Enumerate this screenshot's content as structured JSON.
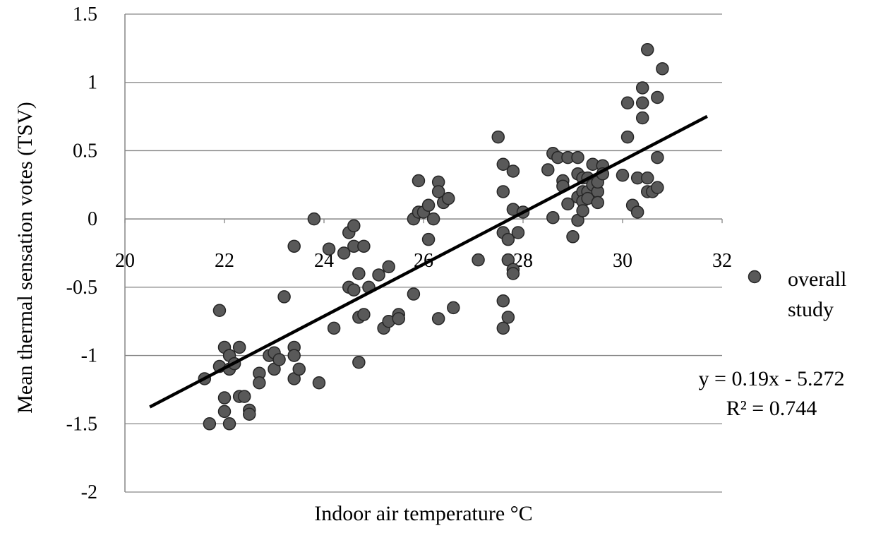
{
  "chart_data": {
    "type": "scatter",
    "title": "",
    "xlabel": "Indoor air temperature °C",
    "ylabel": "Mean thermal sensation votes (TSV)",
    "xlim": [
      20,
      32
    ],
    "ylim": [
      -2,
      1.5
    ],
    "x_ticks": [
      "20",
      "22",
      "24",
      "26",
      "28",
      "30",
      "32"
    ],
    "y_ticks": [
      "1.5",
      "1",
      "0.5",
      "0",
      "-0.5",
      "-1",
      "-1.5",
      "-2"
    ],
    "grid": "horizontal",
    "legend_position": "right",
    "colors": {
      "marker": "#595959",
      "marker_edge": "#262626",
      "trendline": "#000000",
      "grid": "#868686"
    },
    "series": [
      {
        "name": "overall study",
        "points": [
          [
            21.6,
            -1.17
          ],
          [
            21.7,
            -1.5
          ],
          [
            21.9,
            -0.67
          ],
          [
            21.9,
            -1.08
          ],
          [
            22.0,
            -0.94
          ],
          [
            22.0,
            -1.31
          ],
          [
            22.0,
            -1.41
          ],
          [
            22.1,
            -1.0
          ],
          [
            22.1,
            -1.1
          ],
          [
            22.1,
            -1.5
          ],
          [
            22.2,
            -1.06
          ],
          [
            22.3,
            -0.94
          ],
          [
            22.3,
            -1.3
          ],
          [
            22.4,
            -1.3
          ],
          [
            22.5,
            -1.4
          ],
          [
            22.5,
            -1.43
          ],
          [
            22.7,
            -1.13
          ],
          [
            22.7,
            -1.2
          ],
          [
            22.9,
            -1.0
          ],
          [
            23.0,
            -0.98
          ],
          [
            23.0,
            -1.1
          ],
          [
            23.1,
            -1.03
          ],
          [
            23.2,
            -0.57
          ],
          [
            23.4,
            -0.2
          ],
          [
            23.4,
            -0.94
          ],
          [
            23.4,
            -1.0
          ],
          [
            23.4,
            -1.17
          ],
          [
            23.5,
            -1.1
          ],
          [
            23.8,
            0.0
          ],
          [
            23.9,
            -1.2
          ],
          [
            24.1,
            -0.22
          ],
          [
            24.2,
            -0.8
          ],
          [
            24.4,
            -0.25
          ],
          [
            24.5,
            -0.1
          ],
          [
            24.5,
            -0.5
          ],
          [
            24.6,
            -0.05
          ],
          [
            24.6,
            -0.2
          ],
          [
            24.6,
            -0.52
          ],
          [
            24.7,
            -0.4
          ],
          [
            24.7,
            -0.72
          ],
          [
            24.7,
            -1.05
          ],
          [
            24.8,
            -0.2
          ],
          [
            24.8,
            -0.7
          ],
          [
            24.9,
            -0.5
          ],
          [
            25.1,
            -0.41
          ],
          [
            25.2,
            -0.8
          ],
          [
            25.3,
            -0.35
          ],
          [
            25.3,
            -0.75
          ],
          [
            25.5,
            -0.7
          ],
          [
            25.5,
            -0.73
          ],
          [
            25.8,
            0.0
          ],
          [
            25.8,
            -0.55
          ],
          [
            25.9,
            0.05
          ],
          [
            25.9,
            0.28
          ],
          [
            26.0,
            0.05
          ],
          [
            26.1,
            0.1
          ],
          [
            26.1,
            -0.15
          ],
          [
            26.2,
            0.0
          ],
          [
            26.3,
            0.27
          ],
          [
            26.3,
            0.2
          ],
          [
            26.3,
            -0.73
          ],
          [
            26.4,
            0.12
          ],
          [
            26.5,
            0.15
          ],
          [
            26.6,
            -0.65
          ],
          [
            27.1,
            -0.3
          ],
          [
            27.5,
            0.6
          ],
          [
            27.6,
            0.4
          ],
          [
            27.6,
            0.2
          ],
          [
            27.6,
            -0.1
          ],
          [
            27.6,
            -0.6
          ],
          [
            27.6,
            -0.8
          ],
          [
            27.7,
            -0.15
          ],
          [
            27.7,
            -0.3
          ],
          [
            27.7,
            -0.72
          ],
          [
            27.8,
            0.35
          ],
          [
            27.8,
            0.07
          ],
          [
            27.8,
            -0.37
          ],
          [
            27.8,
            -0.4
          ],
          [
            27.9,
            -0.1
          ],
          [
            28.0,
            0.05
          ],
          [
            28.5,
            0.36
          ],
          [
            28.6,
            0.48
          ],
          [
            28.6,
            0.01
          ],
          [
            28.7,
            0.45
          ],
          [
            28.8,
            0.28
          ],
          [
            28.8,
            0.24
          ],
          [
            28.9,
            0.45
          ],
          [
            28.9,
            0.11
          ],
          [
            29.0,
            -0.13
          ],
          [
            29.1,
            0.45
          ],
          [
            29.1,
            0.33
          ],
          [
            29.1,
            0.16
          ],
          [
            29.1,
            -0.01
          ],
          [
            29.2,
            0.3
          ],
          [
            29.2,
            0.2
          ],
          [
            29.2,
            0.13
          ],
          [
            29.2,
            0.06
          ],
          [
            29.3,
            0.3
          ],
          [
            29.3,
            0.2
          ],
          [
            29.3,
            0.15
          ],
          [
            29.4,
            0.4
          ],
          [
            29.4,
            0.25
          ],
          [
            29.5,
            0.2
          ],
          [
            29.5,
            0.12
          ],
          [
            29.5,
            0.27
          ],
          [
            29.6,
            0.39
          ],
          [
            29.6,
            0.33
          ],
          [
            30.0,
            0.32
          ],
          [
            30.1,
            0.85
          ],
          [
            30.1,
            0.6
          ],
          [
            30.2,
            0.1
          ],
          [
            30.3,
            0.3
          ],
          [
            30.3,
            0.05
          ],
          [
            30.4,
            0.96
          ],
          [
            30.4,
            0.85
          ],
          [
            30.4,
            0.74
          ],
          [
            30.5,
            1.24
          ],
          [
            30.5,
            0.3
          ],
          [
            30.5,
            0.2
          ],
          [
            30.6,
            0.2
          ],
          [
            30.7,
            0.89
          ],
          [
            30.7,
            0.45
          ],
          [
            30.7,
            0.23
          ],
          [
            30.8,
            1.1
          ]
        ]
      }
    ],
    "trendline": {
      "equation": "y = 0.19x - 5.272",
      "r_squared": "R² = 0.744",
      "slope": 0.19,
      "intercept": -5.272,
      "x_range": [
        20.5,
        31.7
      ]
    }
  }
}
